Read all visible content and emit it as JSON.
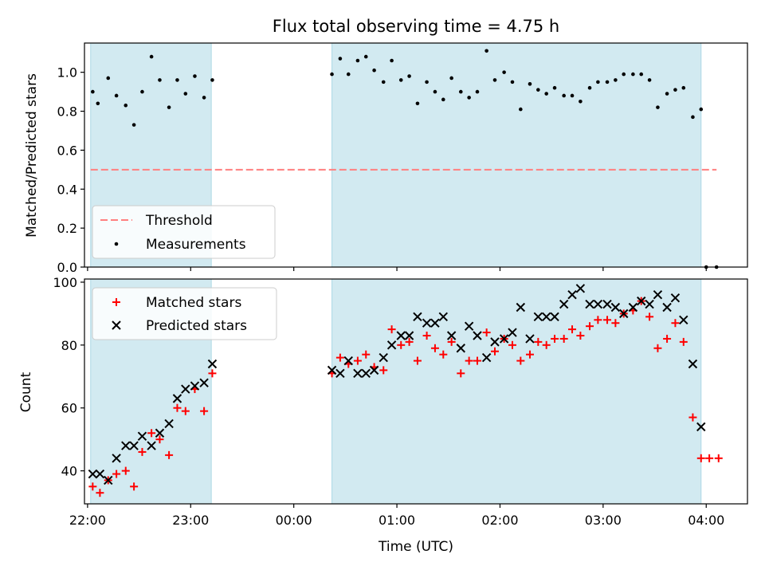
{
  "chart_data": [
    {
      "type": "scatter",
      "title": "Flux total observing time = 4.75 h",
      "xlabel": "",
      "ylabel": "Matched/Predicted stars",
      "xlim": [
        21.97,
        28.4
      ],
      "ylim": [
        0,
        1.15
      ],
      "yticks": [
        0.0,
        0.2,
        0.4,
        0.6,
        0.8,
        1.0
      ],
      "ytick_labels": [
        "0.0",
        "0.2",
        "0.4",
        "0.6",
        "0.8",
        "1.0"
      ],
      "xticks": [
        22,
        23,
        24,
        25,
        26,
        27,
        28
      ],
      "shaded_intervals": [
        [
          22.03,
          23.2
        ],
        [
          24.37,
          27.95
        ]
      ],
      "shade_color": "#add8e6",
      "threshold": {
        "name": "Threshold",
        "value": 0.5,
        "x_range": [
          22.03,
          28.1
        ],
        "color": "#ff7f7f"
      },
      "series": [
        {
          "name": "Measurements",
          "color": "#000000",
          "points": [
            [
              22.05,
              0.9
            ],
            [
              22.1,
              0.84
            ],
            [
              22.2,
              0.97
            ],
            [
              22.28,
              0.88
            ],
            [
              22.37,
              0.83
            ],
            [
              22.45,
              0.73
            ],
            [
              22.53,
              0.9
            ],
            [
              22.62,
              1.08
            ],
            [
              22.7,
              0.96
            ],
            [
              22.79,
              0.82
            ],
            [
              22.87,
              0.96
            ],
            [
              22.95,
              0.89
            ],
            [
              23.04,
              0.98
            ],
            [
              23.13,
              0.87
            ],
            [
              23.21,
              0.96
            ],
            [
              24.37,
              0.99
            ],
            [
              24.45,
              1.07
            ],
            [
              24.53,
              0.99
            ],
            [
              24.62,
              1.06
            ],
            [
              24.7,
              1.08
            ],
            [
              24.78,
              1.01
            ],
            [
              24.87,
              0.95
            ],
            [
              24.95,
              1.06
            ],
            [
              25.04,
              0.96
            ],
            [
              25.12,
              0.98
            ],
            [
              25.2,
              0.84
            ],
            [
              25.29,
              0.95
            ],
            [
              25.37,
              0.9
            ],
            [
              25.45,
              0.86
            ],
            [
              25.53,
              0.97
            ],
            [
              25.62,
              0.9
            ],
            [
              25.7,
              0.87
            ],
            [
              25.78,
              0.9
            ],
            [
              25.87,
              1.11
            ],
            [
              25.95,
              0.96
            ],
            [
              26.04,
              1.0
            ],
            [
              26.12,
              0.95
            ],
            [
              26.2,
              0.81
            ],
            [
              26.29,
              0.94
            ],
            [
              26.37,
              0.91
            ],
            [
              26.45,
              0.89
            ],
            [
              26.53,
              0.92
            ],
            [
              26.62,
              0.88
            ],
            [
              26.7,
              0.88
            ],
            [
              26.78,
              0.85
            ],
            [
              26.87,
              0.92
            ],
            [
              26.95,
              0.95
            ],
            [
              27.04,
              0.95
            ],
            [
              27.12,
              0.96
            ],
            [
              27.2,
              0.99
            ],
            [
              27.29,
              0.99
            ],
            [
              27.37,
              0.99
            ],
            [
              27.45,
              0.96
            ],
            [
              27.53,
              0.82
            ],
            [
              27.62,
              0.89
            ],
            [
              27.7,
              0.91
            ],
            [
              27.78,
              0.92
            ],
            [
              27.87,
              0.77
            ],
            [
              27.95,
              0.81
            ],
            [
              28.0,
              0.0
            ],
            [
              28.1,
              0.0
            ]
          ]
        }
      ],
      "legend": {
        "placement": "lower-left",
        "entries": [
          "Threshold",
          "Measurements"
        ]
      }
    },
    {
      "type": "scatter",
      "title": "",
      "xlabel": "Time (UTC)",
      "ylabel": "Count",
      "xlim": [
        21.97,
        28.4
      ],
      "ylim": [
        29.5,
        101
      ],
      "yticks": [
        40,
        60,
        80,
        100
      ],
      "ytick_labels": [
        "40",
        "60",
        "80",
        "100"
      ],
      "xticks": [
        22,
        23,
        24,
        25,
        26,
        27,
        28
      ],
      "xtick_labels": [
        "22:00",
        "23:00",
        "00:00",
        "01:00",
        "02:00",
        "03:00",
        "04:00"
      ],
      "shaded_intervals": [
        [
          22.03,
          23.2
        ],
        [
          24.37,
          27.95
        ]
      ],
      "shade_color": "#add8e6",
      "series": [
        {
          "name": "Matched stars",
          "marker": "+",
          "color": "#ff0000",
          "points": [
            [
              22.05,
              35
            ],
            [
              22.12,
              33
            ],
            [
              22.2,
              37
            ],
            [
              22.28,
              39
            ],
            [
              22.37,
              40
            ],
            [
              22.45,
              35
            ],
            [
              22.53,
              46
            ],
            [
              22.62,
              52
            ],
            [
              22.7,
              50
            ],
            [
              22.79,
              45
            ],
            [
              22.87,
              60
            ],
            [
              22.95,
              59
            ],
            [
              23.04,
              66
            ],
            [
              23.13,
              59
            ],
            [
              23.21,
              71
            ],
            [
              24.37,
              71
            ],
            [
              24.45,
              76
            ],
            [
              24.53,
              74
            ],
            [
              24.62,
              75
            ],
            [
              24.7,
              77
            ],
            [
              24.78,
              73
            ],
            [
              24.87,
              72
            ],
            [
              24.95,
              85
            ],
            [
              25.04,
              80
            ],
            [
              25.12,
              81
            ],
            [
              25.2,
              75
            ],
            [
              25.29,
              83
            ],
            [
              25.37,
              79
            ],
            [
              25.45,
              77
            ],
            [
              25.53,
              81
            ],
            [
              25.62,
              71
            ],
            [
              25.7,
              75
            ],
            [
              25.78,
              75
            ],
            [
              25.87,
              84
            ],
            [
              25.95,
              78
            ],
            [
              26.04,
              82
            ],
            [
              26.12,
              80
            ],
            [
              26.2,
              75
            ],
            [
              26.29,
              77
            ],
            [
              26.37,
              81
            ],
            [
              26.45,
              80
            ],
            [
              26.53,
              82
            ],
            [
              26.62,
              82
            ],
            [
              26.7,
              85
            ],
            [
              26.78,
              83
            ],
            [
              26.87,
              86
            ],
            [
              26.95,
              88
            ],
            [
              27.04,
              88
            ],
            [
              27.12,
              87
            ],
            [
              27.2,
              90
            ],
            [
              27.29,
              91
            ],
            [
              27.37,
              94
            ],
            [
              27.45,
              89
            ],
            [
              27.53,
              79
            ],
            [
              27.62,
              82
            ],
            [
              27.7,
              87
            ],
            [
              27.78,
              81
            ],
            [
              27.87,
              57
            ],
            [
              27.95,
              44
            ],
            [
              28.03,
              44
            ],
            [
              28.12,
              44
            ]
          ]
        },
        {
          "name": "Predicted stars",
          "marker": "x",
          "color": "#000000",
          "points": [
            [
              22.05,
              39
            ],
            [
              22.12,
              39
            ],
            [
              22.2,
              37
            ],
            [
              22.28,
              44
            ],
            [
              22.37,
              48
            ],
            [
              22.45,
              48
            ],
            [
              22.53,
              51
            ],
            [
              22.62,
              48
            ],
            [
              22.7,
              52
            ],
            [
              22.79,
              55
            ],
            [
              22.87,
              63
            ],
            [
              22.95,
              66
            ],
            [
              23.04,
              67
            ],
            [
              23.13,
              68
            ],
            [
              23.21,
              74
            ],
            [
              24.37,
              72
            ],
            [
              24.45,
              71
            ],
            [
              24.53,
              75
            ],
            [
              24.62,
              71
            ],
            [
              24.7,
              71
            ],
            [
              24.78,
              72
            ],
            [
              24.87,
              76
            ],
            [
              24.95,
              80
            ],
            [
              25.04,
              83
            ],
            [
              25.12,
              83
            ],
            [
              25.2,
              89
            ],
            [
              25.29,
              87
            ],
            [
              25.37,
              87
            ],
            [
              25.45,
              89
            ],
            [
              25.53,
              83
            ],
            [
              25.62,
              79
            ],
            [
              25.7,
              86
            ],
            [
              25.78,
              83
            ],
            [
              25.87,
              76
            ],
            [
              25.95,
              81
            ],
            [
              26.04,
              82
            ],
            [
              26.12,
              84
            ],
            [
              26.2,
              92
            ],
            [
              26.29,
              82
            ],
            [
              26.37,
              89
            ],
            [
              26.45,
              89
            ],
            [
              26.53,
              89
            ],
            [
              26.62,
              93
            ],
            [
              26.7,
              96
            ],
            [
              26.78,
              98
            ],
            [
              26.87,
              93
            ],
            [
              26.95,
              93
            ],
            [
              27.04,
              93
            ],
            [
              27.12,
              92
            ],
            [
              27.2,
              90
            ],
            [
              27.29,
              92
            ],
            [
              27.37,
              94
            ],
            [
              27.45,
              93
            ],
            [
              27.53,
              96
            ],
            [
              27.62,
              92
            ],
            [
              27.7,
              95
            ],
            [
              27.78,
              88
            ],
            [
              27.87,
              74
            ],
            [
              27.95,
              54
            ]
          ]
        }
      ],
      "legend": {
        "placement": "upper-left",
        "entries": [
          "Matched stars",
          "Predicted stars"
        ]
      }
    }
  ]
}
